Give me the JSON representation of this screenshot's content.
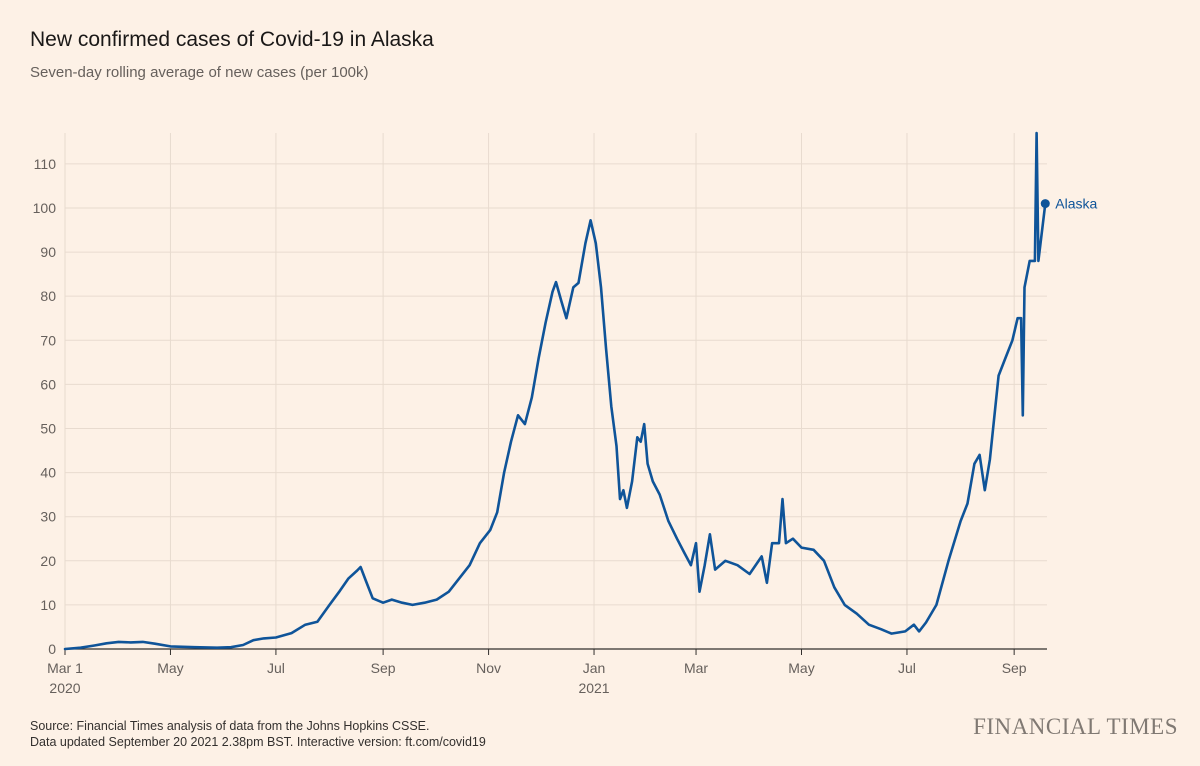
{
  "header": {
    "title": "New confirmed cases of Covid-19 in Alaska",
    "subtitle": "Seven-day rolling average of new cases (per 100k)"
  },
  "footer": {
    "source_line1": "Source: Financial Times analysis of data from the Johns Hopkins CSSE.",
    "source_line2": "Data updated September 20 2021 2.38pm BST. Interactive version: ft.com/covid19",
    "logo": "FINANCIAL TIMES"
  },
  "colors": {
    "background": "#fdf1e6",
    "grid": "#e8dbcf",
    "line": "#0f5499",
    "axis": "#33302e"
  },
  "chart_data": {
    "type": "line",
    "title": "New confirmed cases of Covid-19 in Alaska",
    "subtitle": "Seven-day rolling average of new cases (per 100k)",
    "xlabel": "",
    "ylabel": "",
    "xlim": [
      "2020-03-01",
      "2021-09-20"
    ],
    "ylim": [
      0,
      117
    ],
    "yticks": [
      0,
      10,
      20,
      30,
      40,
      50,
      60,
      70,
      80,
      90,
      100,
      110
    ],
    "xticks": [
      {
        "date": "2020-03-01",
        "label": "Mar 1",
        "sublabel": "2020"
      },
      {
        "date": "2020-05-01",
        "label": "May",
        "sublabel": ""
      },
      {
        "date": "2020-07-01",
        "label": "Jul",
        "sublabel": ""
      },
      {
        "date": "2020-09-01",
        "label": "Sep",
        "sublabel": ""
      },
      {
        "date": "2020-11-01",
        "label": "Nov",
        "sublabel": ""
      },
      {
        "date": "2021-01-01",
        "label": "Jan",
        "sublabel": "2021"
      },
      {
        "date": "2021-03-01",
        "label": "Mar",
        "sublabel": ""
      },
      {
        "date": "2021-05-01",
        "label": "May",
        "sublabel": ""
      },
      {
        "date": "2021-07-01",
        "label": "Jul",
        "sublabel": ""
      },
      {
        "date": "2021-09-01",
        "label": "Sep",
        "sublabel": ""
      }
    ],
    "grid": true,
    "series": [
      {
        "name": "Alaska",
        "points": [
          [
            "2020-03-01",
            0.0
          ],
          [
            "2020-03-10",
            0.3
          ],
          [
            "2020-03-18",
            0.8
          ],
          [
            "2020-03-25",
            1.3
          ],
          [
            "2020-04-01",
            1.6
          ],
          [
            "2020-04-08",
            1.5
          ],
          [
            "2020-04-15",
            1.6
          ],
          [
            "2020-04-22",
            1.2
          ],
          [
            "2020-05-01",
            0.6
          ],
          [
            "2020-05-15",
            0.4
          ],
          [
            "2020-05-28",
            0.3
          ],
          [
            "2020-06-05",
            0.4
          ],
          [
            "2020-06-12",
            0.9
          ],
          [
            "2020-06-18",
            2.0
          ],
          [
            "2020-06-24",
            2.4
          ],
          [
            "2020-07-01",
            2.6
          ],
          [
            "2020-07-10",
            3.6
          ],
          [
            "2020-07-18",
            5.5
          ],
          [
            "2020-07-25",
            6.2
          ],
          [
            "2020-08-01",
            10.0
          ],
          [
            "2020-08-07",
            13.2
          ],
          [
            "2020-08-12",
            16.0
          ],
          [
            "2020-08-17",
            17.8
          ],
          [
            "2020-08-19",
            18.6
          ],
          [
            "2020-08-22",
            15.5
          ],
          [
            "2020-08-26",
            11.5
          ],
          [
            "2020-09-01",
            10.5
          ],
          [
            "2020-09-06",
            11.2
          ],
          [
            "2020-09-12",
            10.5
          ],
          [
            "2020-09-18",
            10.0
          ],
          [
            "2020-09-25",
            10.5
          ],
          [
            "2020-10-02",
            11.2
          ],
          [
            "2020-10-09",
            13.0
          ],
          [
            "2020-10-15",
            16.0
          ],
          [
            "2020-10-21",
            19.0
          ],
          [
            "2020-10-27",
            24.0
          ],
          [
            "2020-11-02",
            27.0
          ],
          [
            "2020-11-06",
            31.0
          ],
          [
            "2020-11-10",
            40.0
          ],
          [
            "2020-11-14",
            47.0
          ],
          [
            "2020-11-18",
            53.0
          ],
          [
            "2020-11-22",
            51.0
          ],
          [
            "2020-11-26",
            57.0
          ],
          [
            "2020-11-30",
            66.0
          ],
          [
            "2020-12-04",
            74.0
          ],
          [
            "2020-12-08",
            81.0
          ],
          [
            "2020-12-10",
            83.2
          ],
          [
            "2020-12-13",
            79.0
          ],
          [
            "2020-12-16",
            75.0
          ],
          [
            "2020-12-20",
            82.0
          ],
          [
            "2020-12-23",
            83.0
          ],
          [
            "2020-12-27",
            92.0
          ],
          [
            "2020-12-30",
            97.2
          ],
          [
            "2021-01-02",
            92.0
          ],
          [
            "2021-01-05",
            82.0
          ],
          [
            "2021-01-08",
            68.0
          ],
          [
            "2021-01-11",
            55.0
          ],
          [
            "2021-01-14",
            46.0
          ],
          [
            "2021-01-16",
            34.0
          ],
          [
            "2021-01-18",
            36.0
          ],
          [
            "2021-01-20",
            32.0
          ],
          [
            "2021-01-23",
            38.0
          ],
          [
            "2021-01-26",
            48.0
          ],
          [
            "2021-01-28",
            47.0
          ],
          [
            "2021-01-30",
            51.0
          ],
          [
            "2021-02-01",
            42.0
          ],
          [
            "2021-02-04",
            38.0
          ],
          [
            "2021-02-08",
            35.0
          ],
          [
            "2021-02-13",
            29.0
          ],
          [
            "2021-02-18",
            25.0
          ],
          [
            "2021-02-22",
            22.0
          ],
          [
            "2021-02-26",
            19.0
          ],
          [
            "2021-03-01",
            24.0
          ],
          [
            "2021-03-03",
            13.0
          ],
          [
            "2021-03-06",
            19.0
          ],
          [
            "2021-03-09",
            26.0
          ],
          [
            "2021-03-12",
            18.0
          ],
          [
            "2021-03-18",
            20.0
          ],
          [
            "2021-03-25",
            19.0
          ],
          [
            "2021-04-01",
            17.0
          ],
          [
            "2021-04-08",
            21.0
          ],
          [
            "2021-04-11",
            15.0
          ],
          [
            "2021-04-14",
            24.0
          ],
          [
            "2021-04-18",
            24.0
          ],
          [
            "2021-04-20",
            34.0
          ],
          [
            "2021-04-22",
            24.0
          ],
          [
            "2021-04-26",
            25.0
          ],
          [
            "2021-05-01",
            23.0
          ],
          [
            "2021-05-08",
            22.5
          ],
          [
            "2021-05-14",
            20.0
          ],
          [
            "2021-05-20",
            14.0
          ],
          [
            "2021-05-26",
            10.0
          ],
          [
            "2021-06-02",
            8.0
          ],
          [
            "2021-06-09",
            5.5
          ],
          [
            "2021-06-16",
            4.5
          ],
          [
            "2021-06-22",
            3.5
          ],
          [
            "2021-06-30",
            4.0
          ],
          [
            "2021-07-05",
            5.5
          ],
          [
            "2021-07-08",
            4.0
          ],
          [
            "2021-07-12",
            6.0
          ],
          [
            "2021-07-18",
            10.0
          ],
          [
            "2021-07-25",
            20.0
          ],
          [
            "2021-08-01",
            29.0
          ],
          [
            "2021-08-05",
            33.0
          ],
          [
            "2021-08-09",
            42.0
          ],
          [
            "2021-08-12",
            44.0
          ],
          [
            "2021-08-15",
            36.0
          ],
          [
            "2021-08-18",
            43.0
          ],
          [
            "2021-08-23",
            62.0
          ],
          [
            "2021-08-27",
            66.0
          ],
          [
            "2021-08-31",
            70.0
          ],
          [
            "2021-09-03",
            75.0
          ],
          [
            "2021-09-05",
            75.0
          ],
          [
            "2021-09-06",
            53.0
          ],
          [
            "2021-09-07",
            82.0
          ],
          [
            "2021-09-10",
            88.0
          ],
          [
            "2021-09-13",
            88.0
          ],
          [
            "2021-09-14",
            117.0
          ],
          [
            "2021-09-15",
            88.0
          ],
          [
            "2021-09-19",
            101.0
          ]
        ]
      }
    ]
  }
}
